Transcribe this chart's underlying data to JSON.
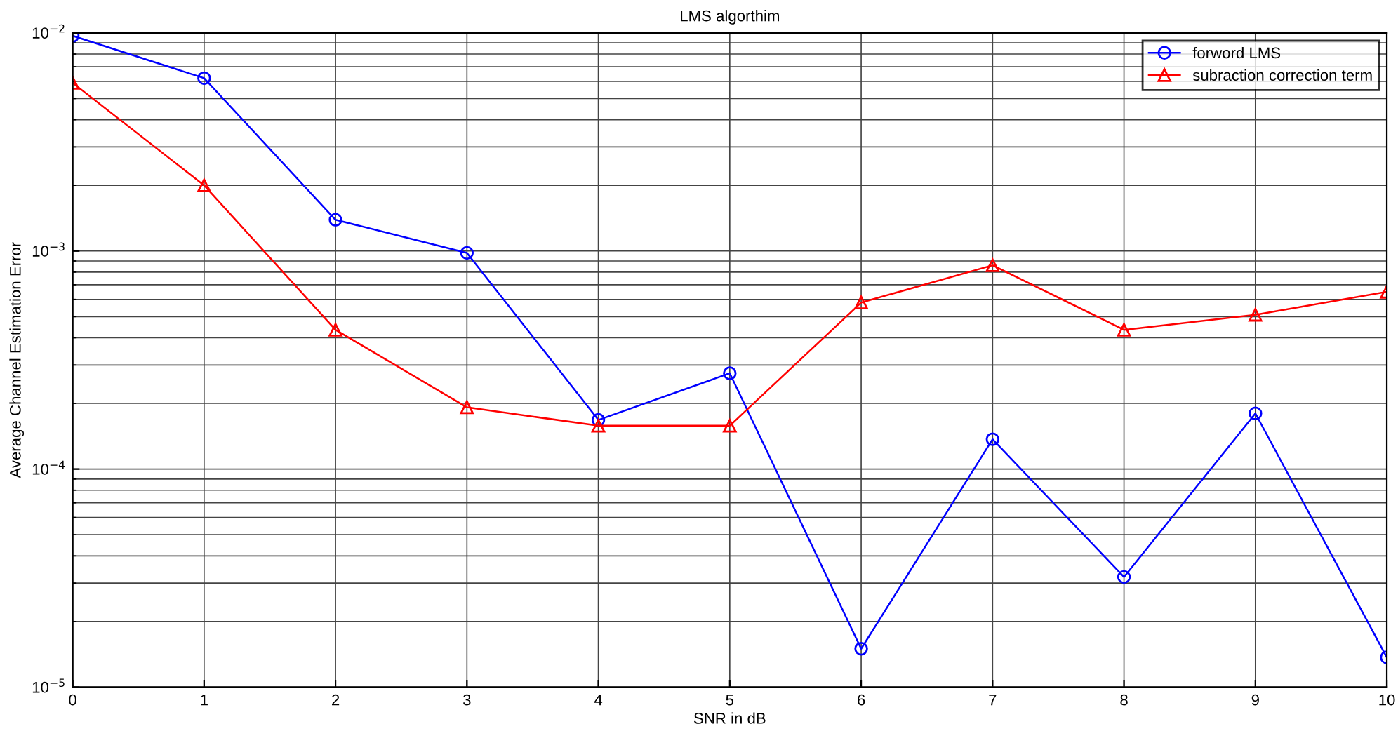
{
  "chart_data": {
    "type": "line",
    "title": "LMS algorthim",
    "xlabel": "SNR in dB",
    "ylabel": "Average Channel Estimation Error",
    "x": [
      0,
      1,
      2,
      3,
      4,
      5,
      6,
      7,
      8,
      9,
      10
    ],
    "series": [
      {
        "name": "forword LMS",
        "color": "#0000ff",
        "marker": "circle",
        "values": [
          0.0097,
          0.0062,
          0.00139,
          0.00098,
          0.000168,
          0.000275,
          1.5e-05,
          0.000137,
          3.2e-05,
          0.00018,
          1.37e-05
        ]
      },
      {
        "name": "subraction correction term",
        "color": "#ff0000",
        "marker": "triangle",
        "values": [
          0.0059,
          0.002,
          0.000435,
          0.000192,
          0.000158,
          0.000158,
          0.00058,
          0.00086,
          0.000435,
          0.00051,
          0.00065
        ]
      }
    ],
    "log": "y",
    "xlim": [
      0,
      10
    ],
    "xticks": [
      0,
      1,
      2,
      3,
      4,
      5,
      6,
      7,
      8,
      9,
      10
    ],
    "ylim": [
      1e-05,
      0.01
    ],
    "yticks": [
      {
        "value": 1e-05,
        "label": "10$^{−5}$"
      },
      {
        "value": 0.0001,
        "label": "10$^{−4}$"
      },
      {
        "value": 0.001,
        "label": "10$^{−3}$"
      },
      {
        "value": 0.01,
        "label": "10$^{−2}$"
      }
    ],
    "grid": true,
    "legend": "top right",
    "line_style": "solid"
  }
}
